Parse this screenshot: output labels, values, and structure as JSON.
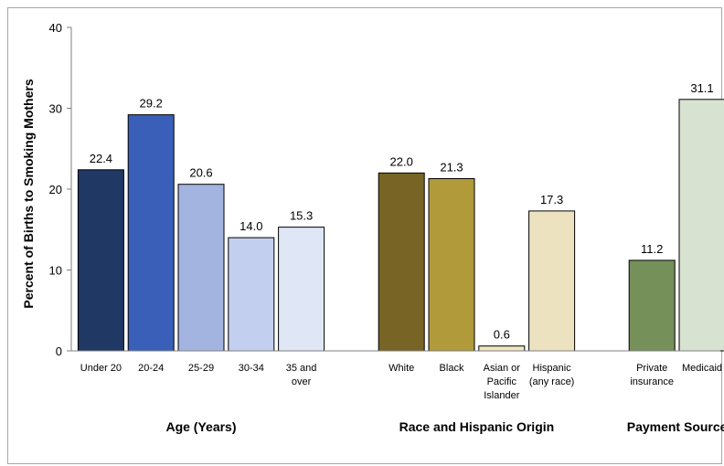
{
  "chart_data": {
    "type": "bar",
    "ylabel": "Percent of Births to Smoking Mothers",
    "ylim": [
      0,
      40
    ],
    "yticks": [
      0,
      10,
      20,
      30,
      40
    ],
    "grid": false,
    "legend": "none",
    "groups": [
      {
        "name": "Age (Years)",
        "bars": [
          {
            "label": [
              "Under 20"
            ],
            "value": 22.4,
            "value_label": "22.4",
            "color": "#203864"
          },
          {
            "label": [
              "20-24"
            ],
            "value": 29.2,
            "value_label": "29.2",
            "color": "#3a5fb8"
          },
          {
            "label": [
              "25-29"
            ],
            "value": 20.6,
            "value_label": "20.6",
            "color": "#a4b4e0"
          },
          {
            "label": [
              "30-34"
            ],
            "value": 14.0,
            "value_label": "14.0",
            "color": "#c3cfee"
          },
          {
            "label": [
              "35 and",
              "over"
            ],
            "value": 15.3,
            "value_label": "15.3",
            "color": "#dfe6f6"
          }
        ]
      },
      {
        "name": "Race and Hispanic Origin",
        "bars": [
          {
            "label": [
              "White"
            ],
            "value": 22.0,
            "value_label": "22.0",
            "color": "#786525"
          },
          {
            "label": [
              "Black"
            ],
            "value": 21.3,
            "value_label": "21.3",
            "color": "#b09a3a"
          },
          {
            "label": [
              "Asian or",
              "Pacific",
              "Islander"
            ],
            "value": 0.6,
            "value_label": "0.6",
            "color": "#efe6c4"
          },
          {
            "label": [
              "Hispanic",
              "(any race)"
            ],
            "value": 17.3,
            "value_label": "17.3",
            "color": "#ede2c0"
          }
        ]
      },
      {
        "name": "Payment Source",
        "bars": [
          {
            "label": [
              "Private",
              "insurance"
            ],
            "value": 11.2,
            "value_label": "11.2",
            "color": "#76905a"
          },
          {
            "label": [
              "Medicaid"
            ],
            "value": 31.1,
            "value_label": "31.1",
            "color": "#d8e2d0"
          }
        ]
      }
    ]
  }
}
